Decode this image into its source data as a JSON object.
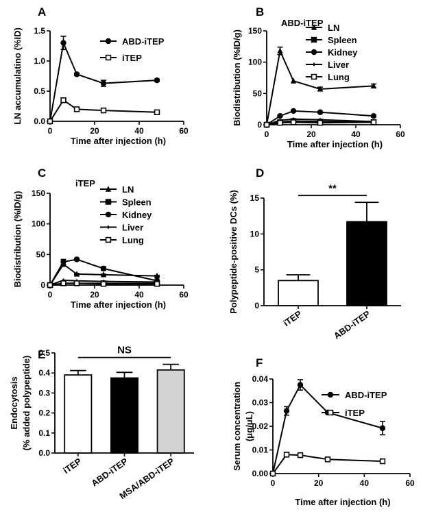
{
  "chart_data": [
    {
      "panel": "A",
      "type": "line",
      "title": "",
      "xlabel": "Time after injection (h)",
      "ylabel": "LN accumulatino (%ID)",
      "xlim": [
        0,
        60
      ],
      "ylim": [
        0,
        1.5
      ],
      "xticks": [
        0,
        20,
        40,
        60
      ],
      "yticks": [
        0.0,
        0.5,
        1.0,
        1.5
      ],
      "ytick_labels": [
        "0.0",
        "0.5",
        "1.0",
        "1.5"
      ],
      "x": [
        0,
        6,
        12,
        24,
        48
      ],
      "series": [
        {
          "name": "ABD-iTEP",
          "marker": "filled-circle",
          "values": [
            0,
            1.3,
            0.78,
            0.63,
            0.68
          ],
          "errors": [
            0,
            0.11,
            0.02,
            0.05,
            0.02
          ]
        },
        {
          "name": "iTEP",
          "marker": "open-square",
          "values": [
            0,
            0.35,
            0.2,
            0.18,
            0.15
          ],
          "errors": [
            0,
            0.03,
            0.02,
            0.02,
            0.02
          ]
        }
      ]
    },
    {
      "panel": "B",
      "type": "line",
      "title": "ABD-iTEP",
      "xlabel": "Time after injection (h)",
      "ylabel": "Biodistribution (%ID/g)",
      "xlim": [
        0,
        60
      ],
      "ylim": [
        0,
        150
      ],
      "xticks": [
        0,
        20,
        40,
        60
      ],
      "yticks": [
        0,
        50,
        100,
        150
      ],
      "ytick_labels": [
        "0",
        "50",
        "100",
        "150"
      ],
      "x": [
        0,
        6,
        12,
        24,
        48
      ],
      "series": [
        {
          "name": "LN",
          "marker": "filled-triangle",
          "values": [
            0,
            118,
            70,
            57,
            62
          ],
          "errors": [
            0,
            6,
            0,
            3,
            3
          ]
        },
        {
          "name": "Spleen",
          "marker": "filled-square",
          "values": [
            0,
            4,
            6,
            5,
            4
          ],
          "errors": [
            0,
            0,
            0,
            0,
            0
          ]
        },
        {
          "name": "Kidney",
          "marker": "filled-circle",
          "values": [
            0,
            14,
            22,
            20,
            14
          ],
          "errors": [
            0,
            1,
            1,
            1,
            1
          ]
        },
        {
          "name": "Liver",
          "marker": "diamond",
          "values": [
            0,
            7,
            9,
            8,
            5
          ],
          "errors": [
            0,
            0,
            0,
            0,
            0
          ]
        },
        {
          "name": "Lung",
          "marker": "open-square",
          "values": [
            0,
            3,
            4,
            3,
            4
          ],
          "errors": [
            0,
            0,
            0,
            0,
            0
          ]
        }
      ]
    },
    {
      "panel": "C",
      "type": "line",
      "title": "iTEP",
      "xlabel": "Time after injection (h)",
      "ylabel": "Biodistribution (%ID/g)",
      "xlim": [
        0,
        60
      ],
      "ylim": [
        0,
        150
      ],
      "xticks": [
        0,
        20,
        40,
        60
      ],
      "yticks": [
        0,
        50,
        100,
        150
      ],
      "ytick_labels": [
        "0",
        "50",
        "100",
        "150"
      ],
      "x": [
        0,
        6,
        12,
        24,
        48
      ],
      "series": [
        {
          "name": "LN",
          "marker": "filled-triangle",
          "values": [
            0,
            34,
            18,
            17,
            15
          ],
          "errors": [
            0,
            3,
            1,
            1,
            1
          ]
        },
        {
          "name": "Spleen",
          "marker": "filled-square",
          "values": [
            0,
            3,
            3,
            3,
            3
          ],
          "errors": [
            0,
            0,
            0,
            0,
            0
          ]
        },
        {
          "name": "Kidney",
          "marker": "filled-circle",
          "values": [
            0,
            38,
            42,
            27,
            7
          ],
          "errors": [
            0,
            4,
            2,
            3,
            1
          ]
        },
        {
          "name": "Liver",
          "marker": "diamond",
          "values": [
            0,
            8,
            7,
            6,
            5
          ],
          "errors": [
            0,
            0,
            0,
            0,
            0
          ]
        },
        {
          "name": "Lung",
          "marker": "open-square",
          "values": [
            0,
            3,
            3,
            2,
            2
          ],
          "errors": [
            0,
            0,
            0,
            0,
            0
          ]
        }
      ]
    },
    {
      "panel": "D",
      "type": "bar",
      "title": "",
      "xlabel": "",
      "ylabel": "Polypeptide-positive DCs (%)",
      "ylim": [
        0,
        15
      ],
      "yticks": [
        0,
        5,
        10,
        15
      ],
      "ytick_labels": [
        "0",
        "5",
        "10",
        "15"
      ],
      "categories": [
        "iTEP",
        "ABD-iTEP"
      ],
      "values": [
        3.5,
        11.7
      ],
      "errors": [
        0.8,
        2.7
      ],
      "bar_colors": [
        "#ffffff",
        "#000000"
      ],
      "significance": "**"
    },
    {
      "panel": "E",
      "type": "bar",
      "title": "",
      "xlabel": "",
      "ylabel": "Endocytosis",
      "ylabel2": "(% added polypeptide)",
      "ylim": [
        0,
        0.5
      ],
      "yticks": [
        0,
        0.1,
        0.2,
        0.3,
        0.4,
        0.5
      ],
      "ytick_labels": [
        "0.0",
        "0.1",
        "0.2",
        "0.3",
        "0.4",
        "0.5"
      ],
      "categories": [
        "iTEP",
        "ABD-iTEP",
        "MSA/ABD-iTEP"
      ],
      "values": [
        0.39,
        0.375,
        0.415
      ],
      "errors": [
        0.022,
        0.028,
        0.028
      ],
      "bar_colors": [
        "#ffffff",
        "#000000",
        "#d3d3d3"
      ],
      "significance": "NS"
    },
    {
      "panel": "F",
      "type": "line",
      "title": "",
      "xlabel": "Time after injection (h)",
      "ylabel": "Serum concentration",
      "ylabel2": "(μg/μL)",
      "xlim": [
        0,
        60
      ],
      "ylim": [
        0,
        0.04
      ],
      "xticks": [
        0,
        20,
        40,
        60
      ],
      "yticks": [
        0,
        0.01,
        0.02,
        0.03,
        0.04
      ],
      "ytick_labels": [
        "0.00",
        "0.01",
        "0.02",
        "0.03",
        "0.04"
      ],
      "x": [
        0,
        6,
        12,
        24,
        48
      ],
      "series": [
        {
          "name": "ABD-iTEP",
          "marker": "filled-circle",
          "values": [
            0,
            0.0265,
            0.0375,
            0.0258,
            0.0192
          ],
          "errors": [
            0,
            0.0018,
            0.0022,
            0.0005,
            0.0028
          ]
        },
        {
          "name": "iTEP",
          "marker": "open-square",
          "values": [
            0,
            0.008,
            0.0078,
            0.006,
            0.0052
          ],
          "errors": [
            0,
            0.0008,
            0.0005,
            0.0004,
            0.0004
          ]
        }
      ]
    }
  ]
}
